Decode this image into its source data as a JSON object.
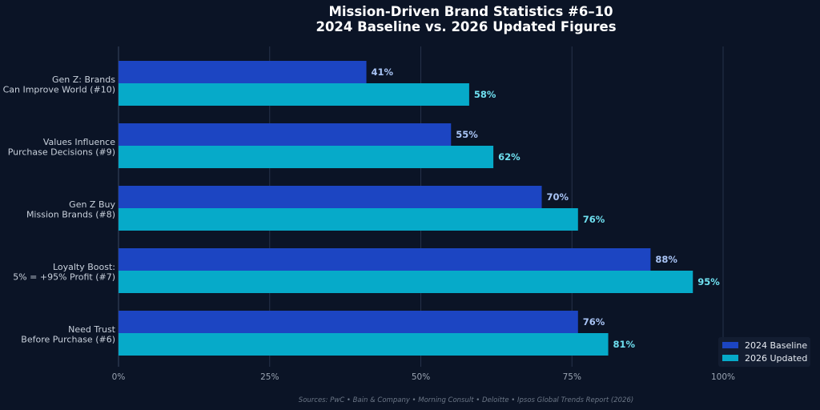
{
  "chart_data": {
    "type": "bar",
    "orientation": "horizontal",
    "title": "Mission-Driven Brand Statistics #6–10",
    "subtitle": "2024 Baseline vs. 2026 Updated Figures",
    "categories": [
      [
        "Gen Z: Brands",
        "Can Improve World (#10)"
      ],
      [
        "Values Influence",
        "Purchase Decisions (#9)"
      ],
      [
        "Gen Z Buy",
        "Mission Brands (#8)"
      ],
      [
        "Loyalty Boost:",
        "5% = +95% Profit (#7)"
      ],
      [
        "Need Trust",
        "Before Purchase (#6)"
      ]
    ],
    "series": [
      {
        "name": "2024 Baseline",
        "values": [
          41,
          55,
          70,
          88,
          76
        ],
        "color": "#1c45c2",
        "label_color": "#a9c4f5"
      },
      {
        "name": "2026 Updated",
        "values": [
          58,
          62,
          76,
          95,
          81
        ],
        "color": "#06aac9",
        "label_color": "#6fe0f0"
      }
    ],
    "value_suffix": "%",
    "xlim": [
      0,
      100
    ],
    "xticks": [
      0,
      25,
      50,
      75,
      100
    ],
    "xtick_labels": [
      "0%",
      "25%",
      "50%",
      "75%",
      "100%"
    ],
    "grid": "vertical",
    "legend_position": "bottom-right",
    "source": "Sources: PwC • Bain & Company • Morning Consult • Deloitte • Ipsos Global Trends Report (2026)"
  }
}
